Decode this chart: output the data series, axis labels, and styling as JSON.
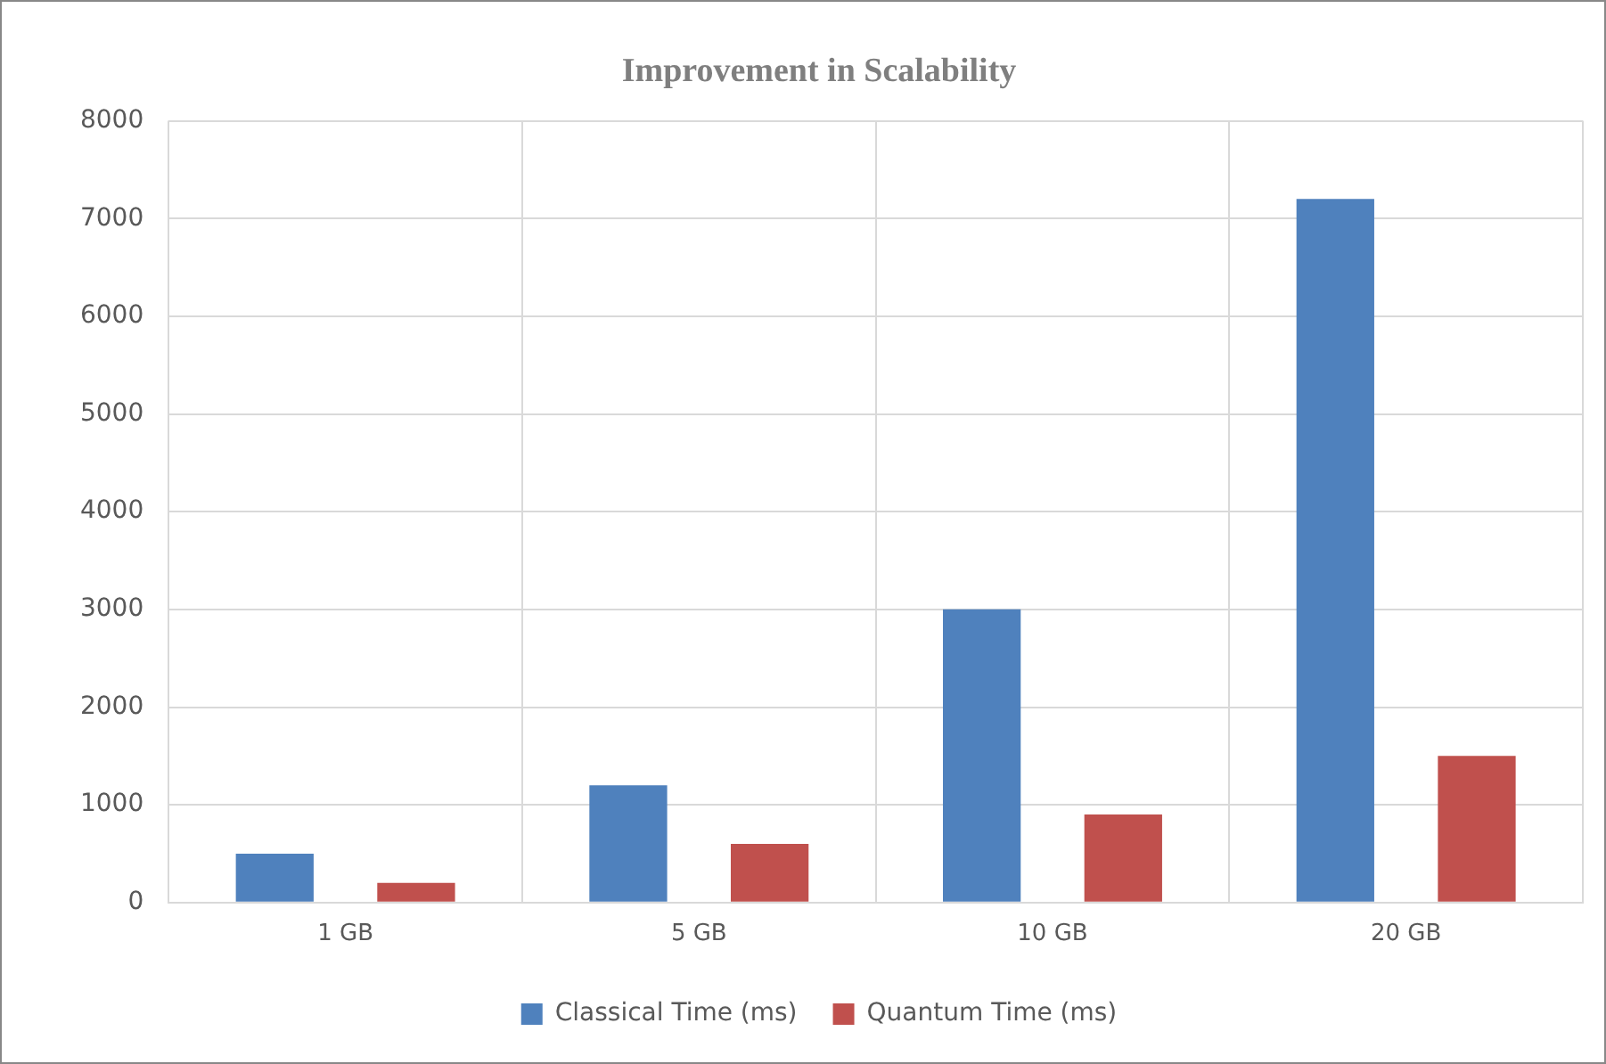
{
  "chart_data": {
    "type": "bar",
    "title": "Improvement in Scalability",
    "categories": [
      "1 GB",
      "5 GB",
      "10 GB",
      "20 GB"
    ],
    "series": [
      {
        "name": "Classical Time (ms)",
        "color": "#4f81bd",
        "values": [
          500,
          1200,
          3000,
          7200
        ]
      },
      {
        "name": "Quantum Time (ms)",
        "color": "#c0504d",
        "values": [
          200,
          600,
          900,
          1500
        ]
      }
    ],
    "ylim": [
      0,
      8000
    ],
    "yticks": [
      0,
      1000,
      2000,
      3000,
      4000,
      5000,
      6000,
      7000,
      8000
    ],
    "grid": true,
    "legend": "bottom"
  }
}
